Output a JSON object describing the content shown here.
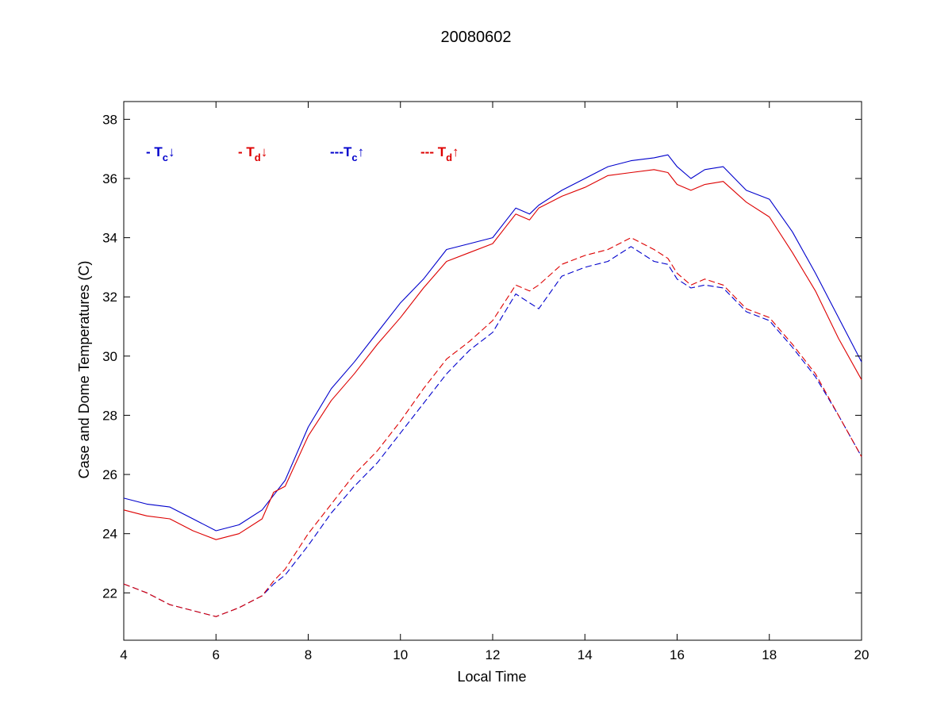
{
  "chart_data": {
    "type": "line",
    "title": "20080602",
    "xlabel": "Local Time",
    "ylabel": "Case and Dome Temperatures (C)",
    "xlim": [
      4,
      20
    ],
    "ylim": [
      20.4,
      38.6
    ],
    "x_ticks": [
      4,
      6,
      8,
      10,
      12,
      14,
      16,
      18,
      20
    ],
    "y_ticks": [
      22,
      24,
      26,
      28,
      30,
      32,
      34,
      36,
      38
    ],
    "grid": false,
    "legend_position": "top-left",
    "legend": [
      {
        "prefix": "- T",
        "sub": "c",
        "arrow": "↓",
        "color": "#0000cc"
      },
      {
        "prefix": "- T",
        "sub": "d",
        "arrow": "↓",
        "color": "#dd0000"
      },
      {
        "prefix": "---T",
        "sub": "c",
        "arrow": "↑",
        "color": "#0000cc"
      },
      {
        "prefix": "--- T",
        "sub": "d",
        "arrow": "↑",
        "color": "#dd0000"
      }
    ],
    "x": [
      4.0,
      4.5,
      5.0,
      5.5,
      6.0,
      6.5,
      7.0,
      7.25,
      7.5,
      8.0,
      8.5,
      9.0,
      9.5,
      10.0,
      10.5,
      11.0,
      11.5,
      12.0,
      12.5,
      12.8,
      13.0,
      13.5,
      14.0,
      14.5,
      15.0,
      15.5,
      15.8,
      16.0,
      16.3,
      16.6,
      17.0,
      17.5,
      18.0,
      18.5,
      19.0,
      19.5,
      20.0
    ],
    "series": [
      {
        "label": "Tc down",
        "color": "#0000cc",
        "dash": "solid",
        "values": [
          25.2,
          25.0,
          24.9,
          24.5,
          24.1,
          24.3,
          24.8,
          25.3,
          25.8,
          27.6,
          28.9,
          29.8,
          30.8,
          31.8,
          32.6,
          33.6,
          33.8,
          34.0,
          35.0,
          34.8,
          35.1,
          35.6,
          36.0,
          36.4,
          36.6,
          36.7,
          36.8,
          36.4,
          36.0,
          36.3,
          36.4,
          35.6,
          35.3,
          34.2,
          32.8,
          31.3,
          29.8
        ]
      },
      {
        "label": "Td down",
        "color": "#dd0000",
        "dash": "solid",
        "values": [
          24.8,
          24.6,
          24.5,
          24.1,
          23.8,
          24.0,
          24.5,
          25.4,
          25.6,
          27.3,
          28.5,
          29.4,
          30.4,
          31.3,
          32.3,
          33.2,
          33.5,
          33.8,
          34.8,
          34.6,
          35.0,
          35.4,
          35.7,
          36.1,
          36.2,
          36.3,
          36.2,
          35.8,
          35.6,
          35.8,
          35.9,
          35.2,
          34.7,
          33.5,
          32.2,
          30.6,
          29.2
        ]
      },
      {
        "label": "Tc up",
        "color": "#0000cc",
        "dash": "dashed",
        "values": [
          22.3,
          22.0,
          21.6,
          21.4,
          21.2,
          21.5,
          21.9,
          22.3,
          22.6,
          23.6,
          24.7,
          25.6,
          26.4,
          27.4,
          28.4,
          29.4,
          30.2,
          30.8,
          32.1,
          31.8,
          31.6,
          32.7,
          33.0,
          33.2,
          33.7,
          33.2,
          33.1,
          32.6,
          32.3,
          32.4,
          32.3,
          31.5,
          31.2,
          30.3,
          29.3,
          28.0,
          26.6
        ]
      },
      {
        "label": "Td up",
        "color": "#dd0000",
        "dash": "dashed",
        "values": [
          22.3,
          22.0,
          21.6,
          21.4,
          21.2,
          21.5,
          21.9,
          22.4,
          22.8,
          24.0,
          25.0,
          26.0,
          26.8,
          27.8,
          28.9,
          29.9,
          30.5,
          31.2,
          32.4,
          32.2,
          32.4,
          33.1,
          33.4,
          33.6,
          34.0,
          33.6,
          33.3,
          32.8,
          32.4,
          32.6,
          32.4,
          31.6,
          31.3,
          30.4,
          29.4,
          28.0,
          26.6
        ]
      }
    ]
  }
}
